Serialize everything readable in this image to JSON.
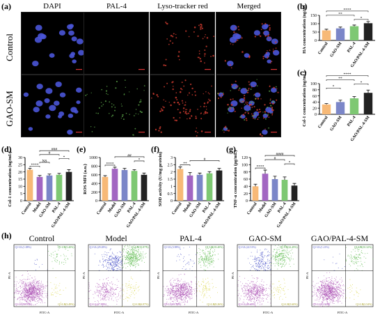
{
  "panel_labels": {
    "a": "(a)",
    "b": "(b)",
    "c": "(c)",
    "d": "(d)",
    "e": "(e)",
    "f": "(f)",
    "g": "(g)",
    "h": "(h)"
  },
  "micro": {
    "columns": [
      "DAPI",
      "PAL-4",
      "Lyso-tracker red",
      "Merged"
    ],
    "rows": [
      "Control",
      "GAO-SM"
    ]
  },
  "flow": {
    "titles": [
      "Control",
      "Model",
      "PAL-4",
      "GAO-SM",
      "GAO/PAL-4-SM"
    ],
    "xlabel": "FITC-A",
    "ylabel": "PE-A",
    "quadrants": [
      {
        "ul": "Q1-UL(1.08%)",
        "ur": "Q1-UR(5.40%)",
        "ll": "Q1-LL(90.03%)",
        "lr": "Q1-LR(3.49%)"
      },
      {
        "ul": "Q1-UL(29.28%)",
        "ur": "Q1-UR(35.87%)",
        "ll": "Q1-LL(27.88%)",
        "lr": "Q1-LR(6.97%)"
      },
      {
        "ul": "Q1-UL(3.98%)",
        "ur": "Q1-UR(18.40%)",
        "ll": "Q1-LL(69.38%)",
        "lr": "Q1-LR(8.26%)"
      },
      {
        "ul": "Q1-UL(22.51%)",
        "ur": "Q1-UR(22.49%)",
        "ll": "Q1-LL(49.40%)",
        "lr": "Q1-LR(5.60%)"
      },
      {
        "ul": "Q1-UL(1.21%)",
        "ur": "Q1-UR(10.32%)",
        "ll": "Q1-LL(85.93%)",
        "lr": "Q1-LR(2.54%)"
      }
    ]
  },
  "colors": {
    "Control": "#f7b977",
    "Model": "#a266c2",
    "GAO-SM": "#7b86c8",
    "PAL-4": "#7ec873",
    "GAO/PAL-4-SM": "#222222",
    "micro_bg": "#000000",
    "nuclei": "#4a55d8",
    "lyso": "#c83a2e",
    "pal": "#5ca84a"
  },
  "chart_data": [
    {
      "id": "b",
      "type": "bar",
      "categories": [
        "Control",
        "GAO-SM",
        "PAL-4",
        "GAO/PAL-4-SM"
      ],
      "values": [
        60,
        72,
        85,
        103
      ],
      "errors": [
        7,
        8,
        7,
        10
      ],
      "ylabel": "HA concentration (ng/mL)",
      "ylim": [
        0,
        150
      ],
      "ticks": [
        0,
        50,
        100,
        150
      ],
      "significance": [
        {
          "from": 0,
          "to": 3,
          "label": "****"
        },
        {
          "from": 0,
          "to": 2,
          "label": "**"
        },
        {
          "from": 2,
          "to": 3,
          "label": "*"
        }
      ]
    },
    {
      "id": "c",
      "type": "bar",
      "categories": [
        "Control",
        "GAO-SM",
        "PAL-4",
        "GAO/PAL-4-SM"
      ],
      "values": [
        32,
        40,
        52,
        70
      ],
      "errors": [
        3,
        6,
        6,
        9
      ],
      "ylabel": "Col-1 concentration (ng/mL)",
      "ylim": [
        0,
        100
      ],
      "ticks": [
        0,
        20,
        40,
        60,
        80,
        100
      ],
      "significance": [
        {
          "from": 0,
          "to": 3,
          "label": "****"
        },
        {
          "from": 0,
          "to": 2,
          "label": "**"
        },
        {
          "from": 0,
          "to": 1,
          "label": "*"
        },
        {
          "from": 2,
          "to": 3,
          "label": "*"
        }
      ]
    },
    {
      "id": "d",
      "type": "bar",
      "categories": [
        "Control",
        "Model",
        "GAO-SM",
        "PAL-4",
        "GAO/PAL-4-SM"
      ],
      "values": [
        21.5,
        16.5,
        17.5,
        18,
        20
      ],
      "errors": [
        1,
        1,
        1,
        1,
        1.5
      ],
      "ylabel": "Col-1 concentration (ng/mL)",
      "ylim": [
        0,
        30
      ],
      "ticks": [
        0,
        5,
        10,
        15,
        20,
        25,
        30
      ],
      "significance": [
        {
          "from": 0,
          "to": 1,
          "label": "****"
        },
        {
          "from": 1,
          "to": 2,
          "label": "NS"
        },
        {
          "from": 1,
          "to": 3,
          "label": "#"
        },
        {
          "from": 1,
          "to": 4,
          "label": "###"
        },
        {
          "from": 3,
          "to": 4,
          "label": "*"
        }
      ]
    },
    {
      "id": "e",
      "type": "bar",
      "categories": [
        "Control",
        "Model",
        "GAO-SM",
        "PAL-4",
        "GAO/PAL-4-SM"
      ],
      "values": [
        550,
        740,
        710,
        690,
        600
      ],
      "errors": [
        30,
        35,
        40,
        30,
        40
      ],
      "ylabel": "ROS MFI (a.u.)",
      "ylim": [
        0,
        1000
      ],
      "ticks": [
        0,
        200,
        400,
        600,
        800,
        1000
      ],
      "significance": [
        {
          "from": 0,
          "to": 1,
          "label": "****"
        },
        {
          "from": 1,
          "to": 4,
          "label": "##"
        },
        {
          "from": 3,
          "to": 4,
          "label": "*"
        }
      ]
    },
    {
      "id": "f",
      "type": "bar",
      "categories": [
        "Control",
        "Model",
        "GAO-SM",
        "PAL-4",
        "GAO/PAL-4-SM"
      ],
      "values": [
        2.2,
        1.75,
        1.8,
        1.9,
        2.1
      ],
      "errors": [
        0.15,
        0.2,
        0.12,
        0.12,
        0.15
      ],
      "ylabel": "SOD activity (U/mg protein)",
      "ylim": [
        0,
        3
      ],
      "ticks": [
        0,
        0.5,
        1,
        1.5,
        2,
        2.5,
        3
      ],
      "significance": [
        {
          "from": 0,
          "to": 1,
          "label": "**"
        },
        {
          "from": 1,
          "to": 4,
          "label": "#"
        }
      ]
    },
    {
      "id": "g",
      "type": "bar",
      "categories": [
        "Control",
        "Model",
        "GAO-SM",
        "PAL-4",
        "GAO/PAL-4-SM"
      ],
      "values": [
        40,
        75,
        60,
        58,
        42
      ],
      "errors": [
        6,
        10,
        8,
        8,
        6
      ],
      "ylabel": "TNF-α concentration (pg/mL)",
      "ylim": [
        0,
        120
      ],
      "ticks": [
        0,
        20,
        40,
        60,
        80,
        100,
        120
      ],
      "significance": [
        {
          "from": 0,
          "to": 1,
          "label": "****"
        },
        {
          "from": 1,
          "to": 4,
          "label": "####"
        },
        {
          "from": 1,
          "to": 3,
          "label": "#"
        },
        {
          "from": 3,
          "to": 4,
          "label": "*"
        }
      ]
    }
  ]
}
